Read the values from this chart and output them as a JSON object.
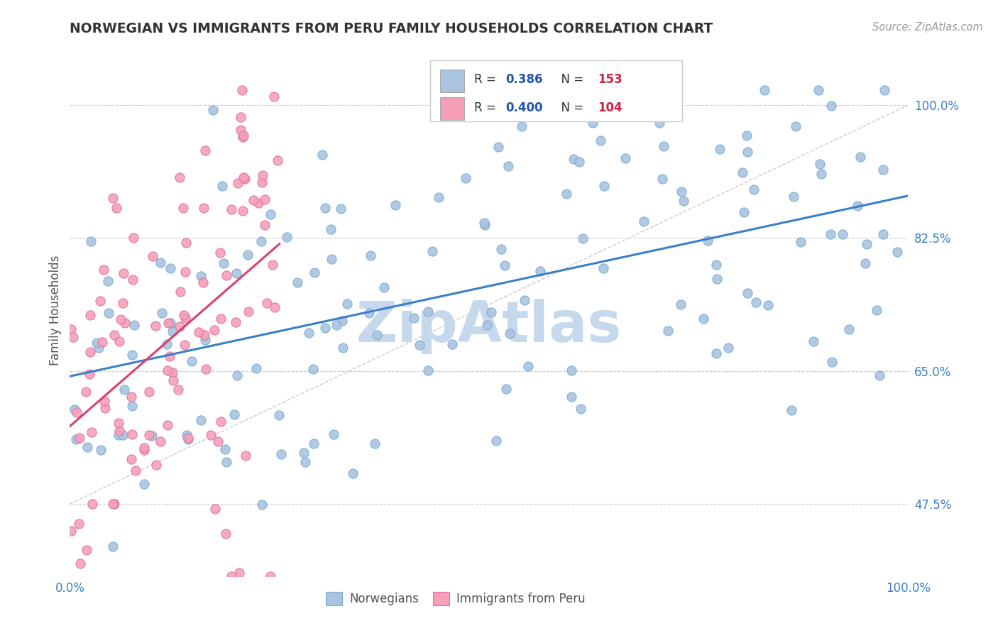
{
  "title": "NORWEGIAN VS IMMIGRANTS FROM PERU FAMILY HOUSEHOLDS CORRELATION CHART",
  "source": "Source: ZipAtlas.com",
  "ylabel": "Family Households",
  "xlim": [
    0.0,
    1.0
  ],
  "ylim": [
    0.38,
    1.08
  ],
  "ytick_labels": [
    "47.5%",
    "65.0%",
    "82.5%",
    "100.0%"
  ],
  "ytick_values": [
    0.475,
    0.65,
    0.825,
    1.0
  ],
  "xtick_labels": [
    "0.0%",
    "100.0%"
  ],
  "xtick_values": [
    0.0,
    1.0
  ],
  "norwegians_color": "#aac4e0",
  "norway_edge_color": "#7aacd0",
  "peru_color": "#f5a0b8",
  "peru_edge_color": "#e070a0",
  "norwegian_line_color": "#3a80c8",
  "peru_line_color": "#d84070",
  "watermark_color": "#c5d8ec",
  "R_norwegian": 0.386,
  "N_norwegian": 153,
  "R_peru": 0.4,
  "N_peru": 104,
  "legend_R_color": "#2255aa",
  "legend_N_color": "#2255aa",
  "legend_label_color": "#333333",
  "background_color": "#ffffff",
  "grid_color": "#cccccc",
  "title_color": "#333333",
  "tick_color": "#3a80c8",
  "nor_seed": 42,
  "peru_seed": 99
}
